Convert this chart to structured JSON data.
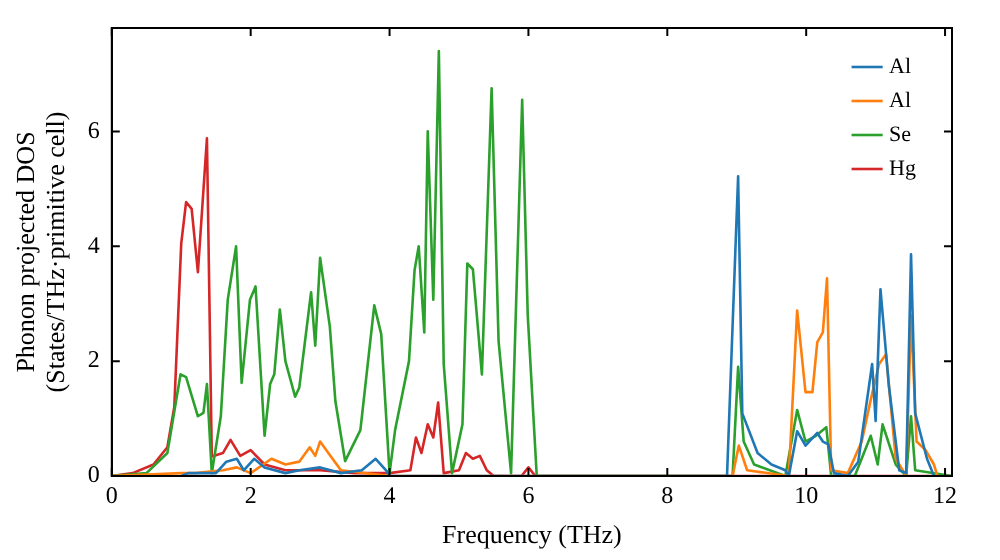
{
  "chart_data": {
    "type": "line",
    "xlabel": "Frequency (THz)",
    "ylabel": "Phonon projected DOS\n(States/THz·primitive cell)",
    "xlim": [
      0,
      12.1
    ],
    "ylim": [
      0,
      7.8
    ],
    "xticks": [
      0,
      2,
      4,
      6,
      8,
      10,
      12
    ],
    "yticks": [
      0,
      2,
      4,
      6
    ],
    "grid": false,
    "legend": "top right",
    "marker": "none",
    "line_style": "solid",
    "series": [
      {
        "name": "Al",
        "color": "#1f77b4",
        "x": [
          1.0,
          1.1,
          1.5,
          1.65,
          1.8,
          1.9,
          2.05,
          2.2,
          2.5,
          2.7,
          3.0,
          3.3,
          3.6,
          3.8,
          3.95,
          4.0,
          8.86,
          9.02,
          9.08,
          9.3,
          9.5,
          9.7,
          9.75,
          9.87,
          9.99,
          10.16,
          10.24,
          10.32,
          10.4,
          10.6,
          10.75,
          10.95,
          11.0,
          11.07,
          11.19,
          11.34,
          11.44,
          11.51,
          11.57,
          11.74,
          11.84
        ],
        "values": [
          0,
          0.05,
          0.05,
          0.25,
          0.3,
          0.1,
          0.3,
          0.15,
          0.05,
          0.1,
          0.15,
          0.05,
          0.1,
          0.3,
          0.1,
          0,
          0,
          5.22,
          1.09,
          0.4,
          0.2,
          0.1,
          0,
          0.78,
          0.53,
          0.75,
          0.6,
          0.55,
          0.05,
          0,
          0.25,
          1.95,
          0.96,
          3.25,
          1.58,
          0.1,
          0.05,
          3.86,
          1.09,
          0.3,
          0
        ]
      },
      {
        "name": "Al",
        "color": "#ff7f0e",
        "x": [
          0,
          1.0,
          1.2,
          1.6,
          1.8,
          2.0,
          2.3,
          2.5,
          2.7,
          2.85,
          2.93,
          3.0,
          3.15,
          3.3,
          4.0,
          8.94,
          9.03,
          9.15,
          9.75,
          9.87,
          9.99,
          10.09,
          10.16,
          10.24,
          10.3,
          10.36,
          10.6,
          10.8,
          10.93,
          11.05,
          11.15,
          11.29,
          11.44,
          11.51,
          11.59,
          11.72,
          11.84,
          11.89
        ],
        "values": [
          0,
          0.05,
          0.05,
          0.1,
          0.15,
          0.05,
          0.3,
          0.2,
          0.25,
          0.5,
          0.35,
          0.6,
          0.35,
          0.1,
          0,
          0,
          0.53,
          0.1,
          0,
          2.88,
          1.46,
          1.46,
          2.33,
          2.5,
          3.44,
          0.1,
          0.05,
          0.6,
          1.33,
          1.95,
          2.12,
          0.3,
          0,
          2.8,
          0.6,
          0.45,
          0.2,
          0
        ]
      },
      {
        "name": "Se",
        "color": "#2ca02c",
        "x": [
          0,
          0.5,
          0.8,
          0.99,
          1.07,
          1.24,
          1.32,
          1.37,
          1.44,
          1.57,
          1.67,
          1.79,
          1.87,
          1.99,
          2.07,
          2.2,
          2.28,
          2.34,
          2.42,
          2.5,
          2.64,
          2.7,
          2.87,
          2.93,
          3.0,
          3.14,
          3.22,
          3.36,
          3.58,
          3.78,
          3.88,
          4.0,
          4.08,
          4.28,
          4.36,
          4.42,
          4.5,
          4.55,
          4.63,
          4.71,
          4.78,
          4.9,
          5.05,
          5.12,
          5.2,
          5.33,
          5.47,
          5.57,
          5.75,
          5.91,
          5.99,
          6.12,
          8.94,
          9.02,
          9.1,
          9.25,
          9.7,
          9.87,
          9.99,
          10.14,
          10.29,
          10.36,
          10.7,
          10.93,
          11.03,
          11.1,
          11.29,
          11.44,
          11.51,
          11.57,
          12.1
        ],
        "values": [
          0,
          0.05,
          0.4,
          1.77,
          1.72,
          1.04,
          1.1,
          1.6,
          0.05,
          1.04,
          3.07,
          4.0,
          1.62,
          3.07,
          3.3,
          0.7,
          1.6,
          1.77,
          2.9,
          2.0,
          1.38,
          1.54,
          3.2,
          2.27,
          3.8,
          2.6,
          1.3,
          0.26,
          0.8,
          2.97,
          2.47,
          0.05,
          0.8,
          2.0,
          3.58,
          4.0,
          2.5,
          6.0,
          3.07,
          7.4,
          1.95,
          0.05,
          0.9,
          3.7,
          3.6,
          1.77,
          6.75,
          2.35,
          0.05,
          6.55,
          2.8,
          0,
          0,
          1.9,
          0.6,
          0.2,
          0,
          1.15,
          0.6,
          0.7,
          0.85,
          0,
          0,
          0.7,
          0.2,
          0.9,
          0.2,
          0,
          1.04,
          0.1,
          0
        ]
      },
      {
        "name": "Hg",
        "color": "#d62728",
        "x": [
          0,
          0.3,
          0.6,
          0.8,
          0.9,
          1.0,
          1.07,
          1.15,
          1.24,
          1.37,
          1.44,
          1.6,
          1.71,
          1.85,
          2.0,
          2.2,
          2.5,
          3.0,
          3.5,
          4.0,
          4.3,
          4.38,
          4.46,
          4.55,
          4.63,
          4.7,
          4.78,
          5.0,
          5.1,
          5.2,
          5.3,
          5.4,
          5.5,
          5.9,
          6.0,
          6.1,
          12.1
        ],
        "values": [
          0,
          0.05,
          0.2,
          0.5,
          1.2,
          4.05,
          4.77,
          4.65,
          3.55,
          5.88,
          0.34,
          0.4,
          0.63,
          0.35,
          0.45,
          0.2,
          0.1,
          0.1,
          0.05,
          0.05,
          0.1,
          0.67,
          0.4,
          0.9,
          0.67,
          1.28,
          0.05,
          0.1,
          0.4,
          0.3,
          0.35,
          0.1,
          0,
          0,
          0.15,
          0,
          0
        ]
      }
    ]
  }
}
